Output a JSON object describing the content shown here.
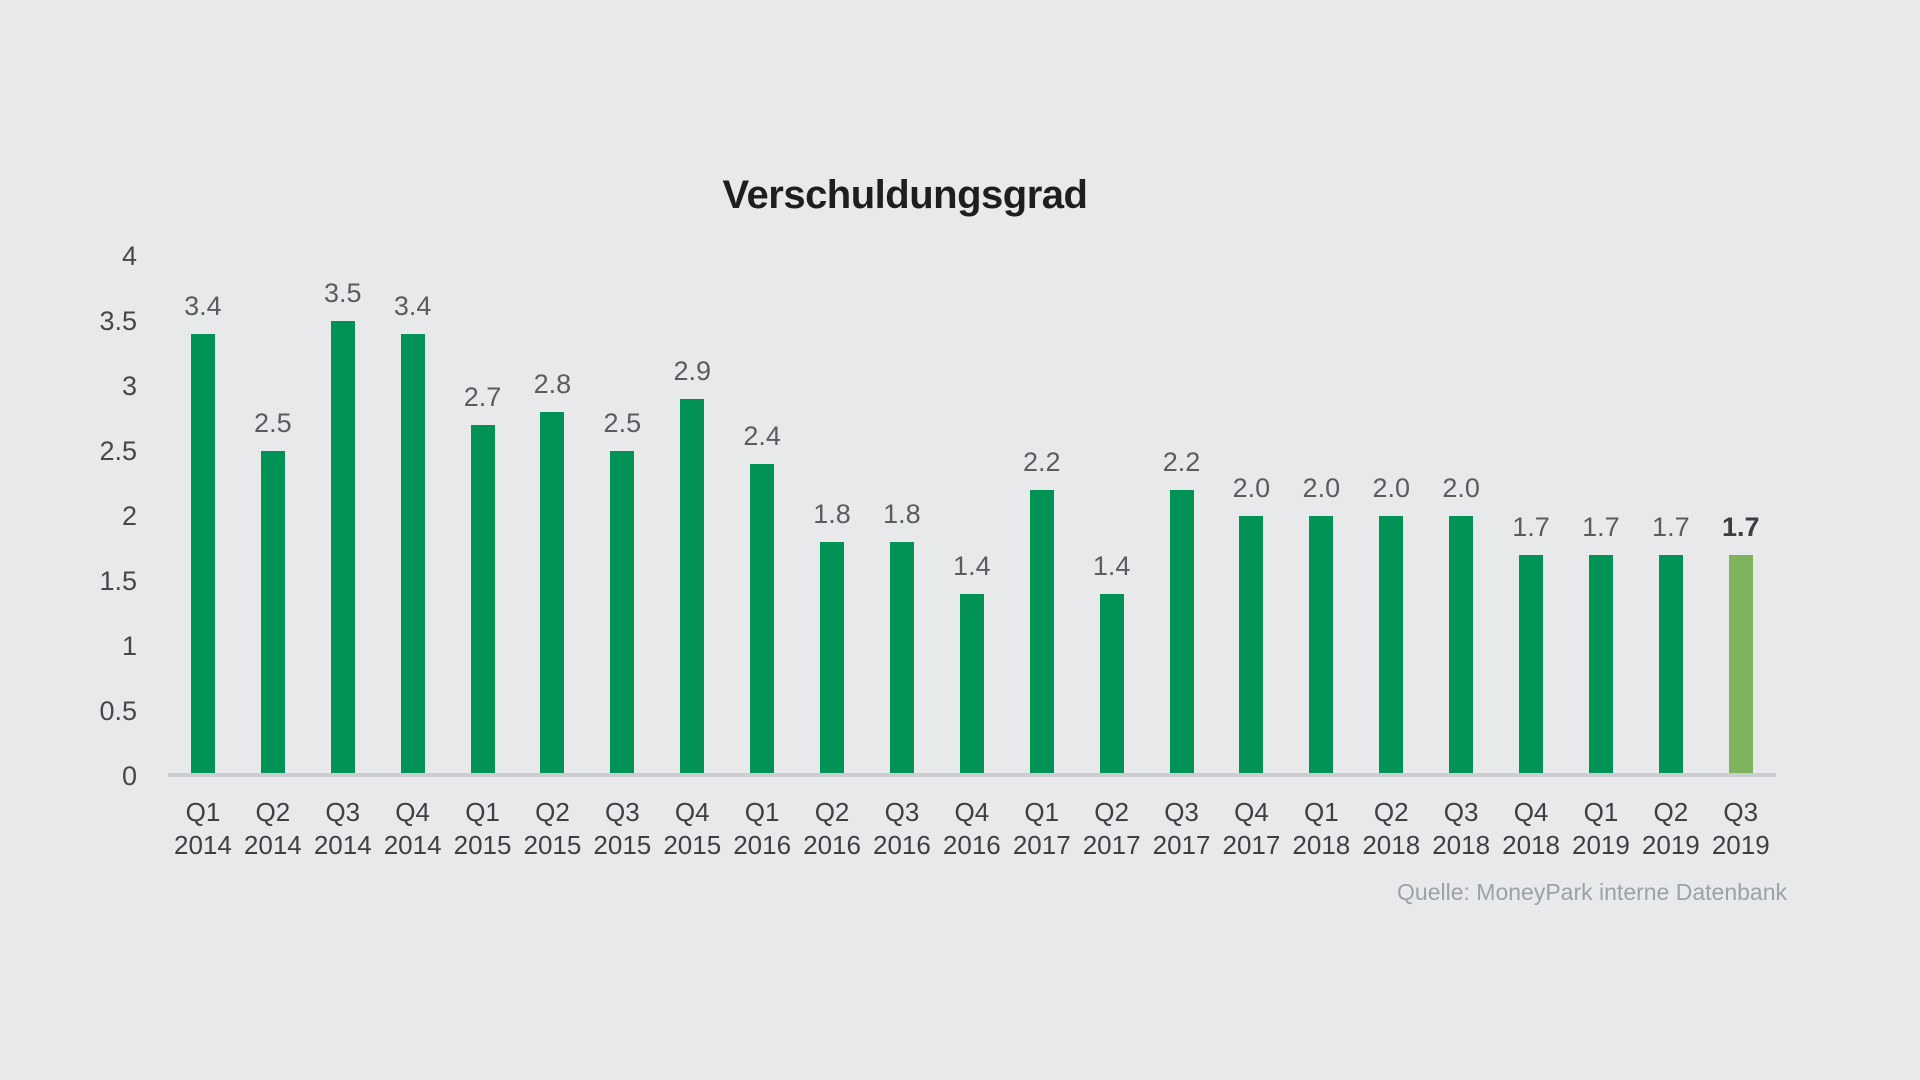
{
  "chart_data": {
    "type": "bar",
    "title": "Verschuldungsgrad",
    "source": "Quelle: MoneyPark interne Datenbank",
    "categories": [
      "Q1 2014",
      "Q2 2014",
      "Q3 2014",
      "Q4 2014",
      "Q1 2015",
      "Q2 2015",
      "Q3 2015",
      "Q4 2015",
      "Q1 2016",
      "Q2 2016",
      "Q3 2016",
      "Q4 2016",
      "Q1 2017",
      "Q2 2017",
      "Q3 2017",
      "Q4 2017",
      "Q1 2018",
      "Q2 2018",
      "Q3 2018",
      "Q4 2018",
      "Q1 2019",
      "Q2 2019",
      "Q3 2019"
    ],
    "values": [
      "3.4",
      "2.5",
      "3.5",
      "3.4",
      "2.7",
      "2.8",
      "2.5",
      "2.9",
      "2.4",
      "1.8",
      "1.8",
      "1.4",
      "2.2",
      "1.4",
      "2.2",
      "2.0",
      "2.0",
      "2.0",
      "2.0",
      "1.7",
      "1.7",
      "1.7",
      "1.7"
    ],
    "highlight_index": 22,
    "yticks": [
      "4",
      "3.5",
      "3",
      "2.5",
      "2",
      "1.5",
      "1",
      "0.5",
      "0"
    ],
    "ylim": [
      0,
      4
    ],
    "grid": false,
    "legend": "none",
    "bar_color": "#009355",
    "highlight_color": "#7db35e",
    "background_color": "#e8e9eb"
  }
}
